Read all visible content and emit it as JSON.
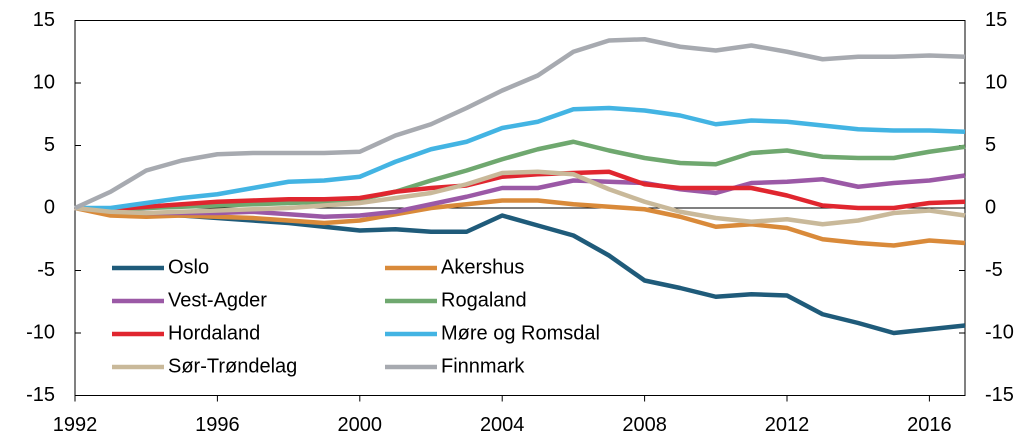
{
  "chart_data": {
    "type": "line",
    "x": [
      1992,
      1993,
      1994,
      1995,
      1996,
      1997,
      1998,
      1999,
      2000,
      2001,
      2002,
      2003,
      2004,
      2005,
      2006,
      2007,
      2008,
      2009,
      2010,
      2011,
      2012,
      2013,
      2014,
      2015,
      2016,
      2017
    ],
    "xlim": [
      1992,
      2017
    ],
    "xticks": [
      1992,
      1996,
      2000,
      2004,
      2008,
      2012,
      2016
    ],
    "ylim": [
      -15,
      15
    ],
    "yticks": [
      -15,
      -10,
      -5,
      0,
      5,
      10,
      15
    ],
    "y2lim": [
      -15,
      15
    ],
    "y2ticks": [
      -15,
      -10,
      -5,
      0,
      5,
      10,
      15
    ],
    "series": [
      {
        "name": "Oslo",
        "color": "#1f5b7a",
        "values": [
          0,
          -0.3,
          -0.5,
          -0.6,
          -0.8,
          -1.0,
          -1.2,
          -1.5,
          -1.8,
          -1.7,
          -1.9,
          -1.9,
          -0.6,
          -1.4,
          -2.2,
          -3.8,
          -5.8,
          -6.4,
          -7.1,
          -6.9,
          -7.0,
          -8.5,
          -9.2,
          -10.0,
          -9.7,
          -9.4
        ]
      },
      {
        "name": "Akershus",
        "color": "#d98a3a",
        "values": [
          0,
          -0.6,
          -0.7,
          -0.6,
          -0.7,
          -0.8,
          -1.0,
          -1.2,
          -1.0,
          -0.5,
          0.0,
          0.3,
          0.6,
          0.6,
          0.3,
          0.1,
          -0.1,
          -0.7,
          -1.5,
          -1.3,
          -1.6,
          -2.5,
          -2.8,
          -3.0,
          -2.6,
          -2.8
        ]
      },
      {
        "name": "Vest-Agder",
        "color": "#9b59a6",
        "values": [
          0,
          -0.2,
          -0.4,
          -0.4,
          -0.4,
          -0.3,
          -0.5,
          -0.7,
          -0.6,
          -0.3,
          0.3,
          0.9,
          1.6,
          1.6,
          2.2,
          2.1,
          2.0,
          1.5,
          1.2,
          2.0,
          2.1,
          2.3,
          1.7,
          2.0,
          2.2,
          2.6
        ]
      },
      {
        "name": "Rogaland",
        "color": "#6fa86f",
        "values": [
          0,
          -0.1,
          0.0,
          0.1,
          0.2,
          0.3,
          0.4,
          0.5,
          0.7,
          1.3,
          2.2,
          3.0,
          3.9,
          4.7,
          5.3,
          4.6,
          4.0,
          3.6,
          3.5,
          4.4,
          4.6,
          4.1,
          4.0,
          4.0,
          4.5,
          4.9
        ]
      },
      {
        "name": "Hordaland",
        "color": "#e0262f",
        "values": [
          0,
          -0.1,
          0.1,
          0.3,
          0.5,
          0.6,
          0.7,
          0.7,
          0.8,
          1.3,
          1.6,
          1.8,
          2.5,
          2.7,
          2.8,
          2.9,
          1.9,
          1.6,
          1.6,
          1.6,
          1.0,
          0.2,
          0.0,
          0.0,
          0.4,
          0.5
        ]
      },
      {
        "name": "Møre og Romsdal",
        "color": "#43b4e3",
        "values": [
          0,
          0.0,
          0.4,
          0.8,
          1.1,
          1.6,
          2.1,
          2.2,
          2.5,
          3.7,
          4.7,
          5.3,
          6.4,
          6.9,
          7.9,
          8.0,
          7.8,
          7.4,
          6.7,
          7.0,
          6.9,
          6.6,
          6.3,
          6.2,
          6.2,
          6.1
        ]
      },
      {
        "name": "Sør-Trøndelag",
        "color": "#c9b99a",
        "values": [
          0,
          -0.3,
          -0.4,
          -0.3,
          -0.2,
          -0.1,
          0.0,
          0.2,
          0.4,
          0.8,
          1.2,
          1.9,
          2.8,
          2.9,
          2.7,
          1.5,
          0.5,
          -0.3,
          -0.8,
          -1.1,
          -0.9,
          -1.3,
          -1.0,
          -0.4,
          -0.2,
          -0.6
        ]
      },
      {
        "name": "Finnmark",
        "color": "#a7aab0",
        "values": [
          0,
          1.3,
          3.0,
          3.8,
          4.3,
          4.4,
          4.4,
          4.4,
          4.5,
          5.8,
          6.7,
          8.0,
          9.4,
          10.6,
          12.5,
          13.4,
          13.5,
          12.9,
          12.6,
          13.0,
          12.5,
          11.9,
          12.1,
          12.1,
          12.2,
          12.1
        ]
      }
    ]
  }
}
